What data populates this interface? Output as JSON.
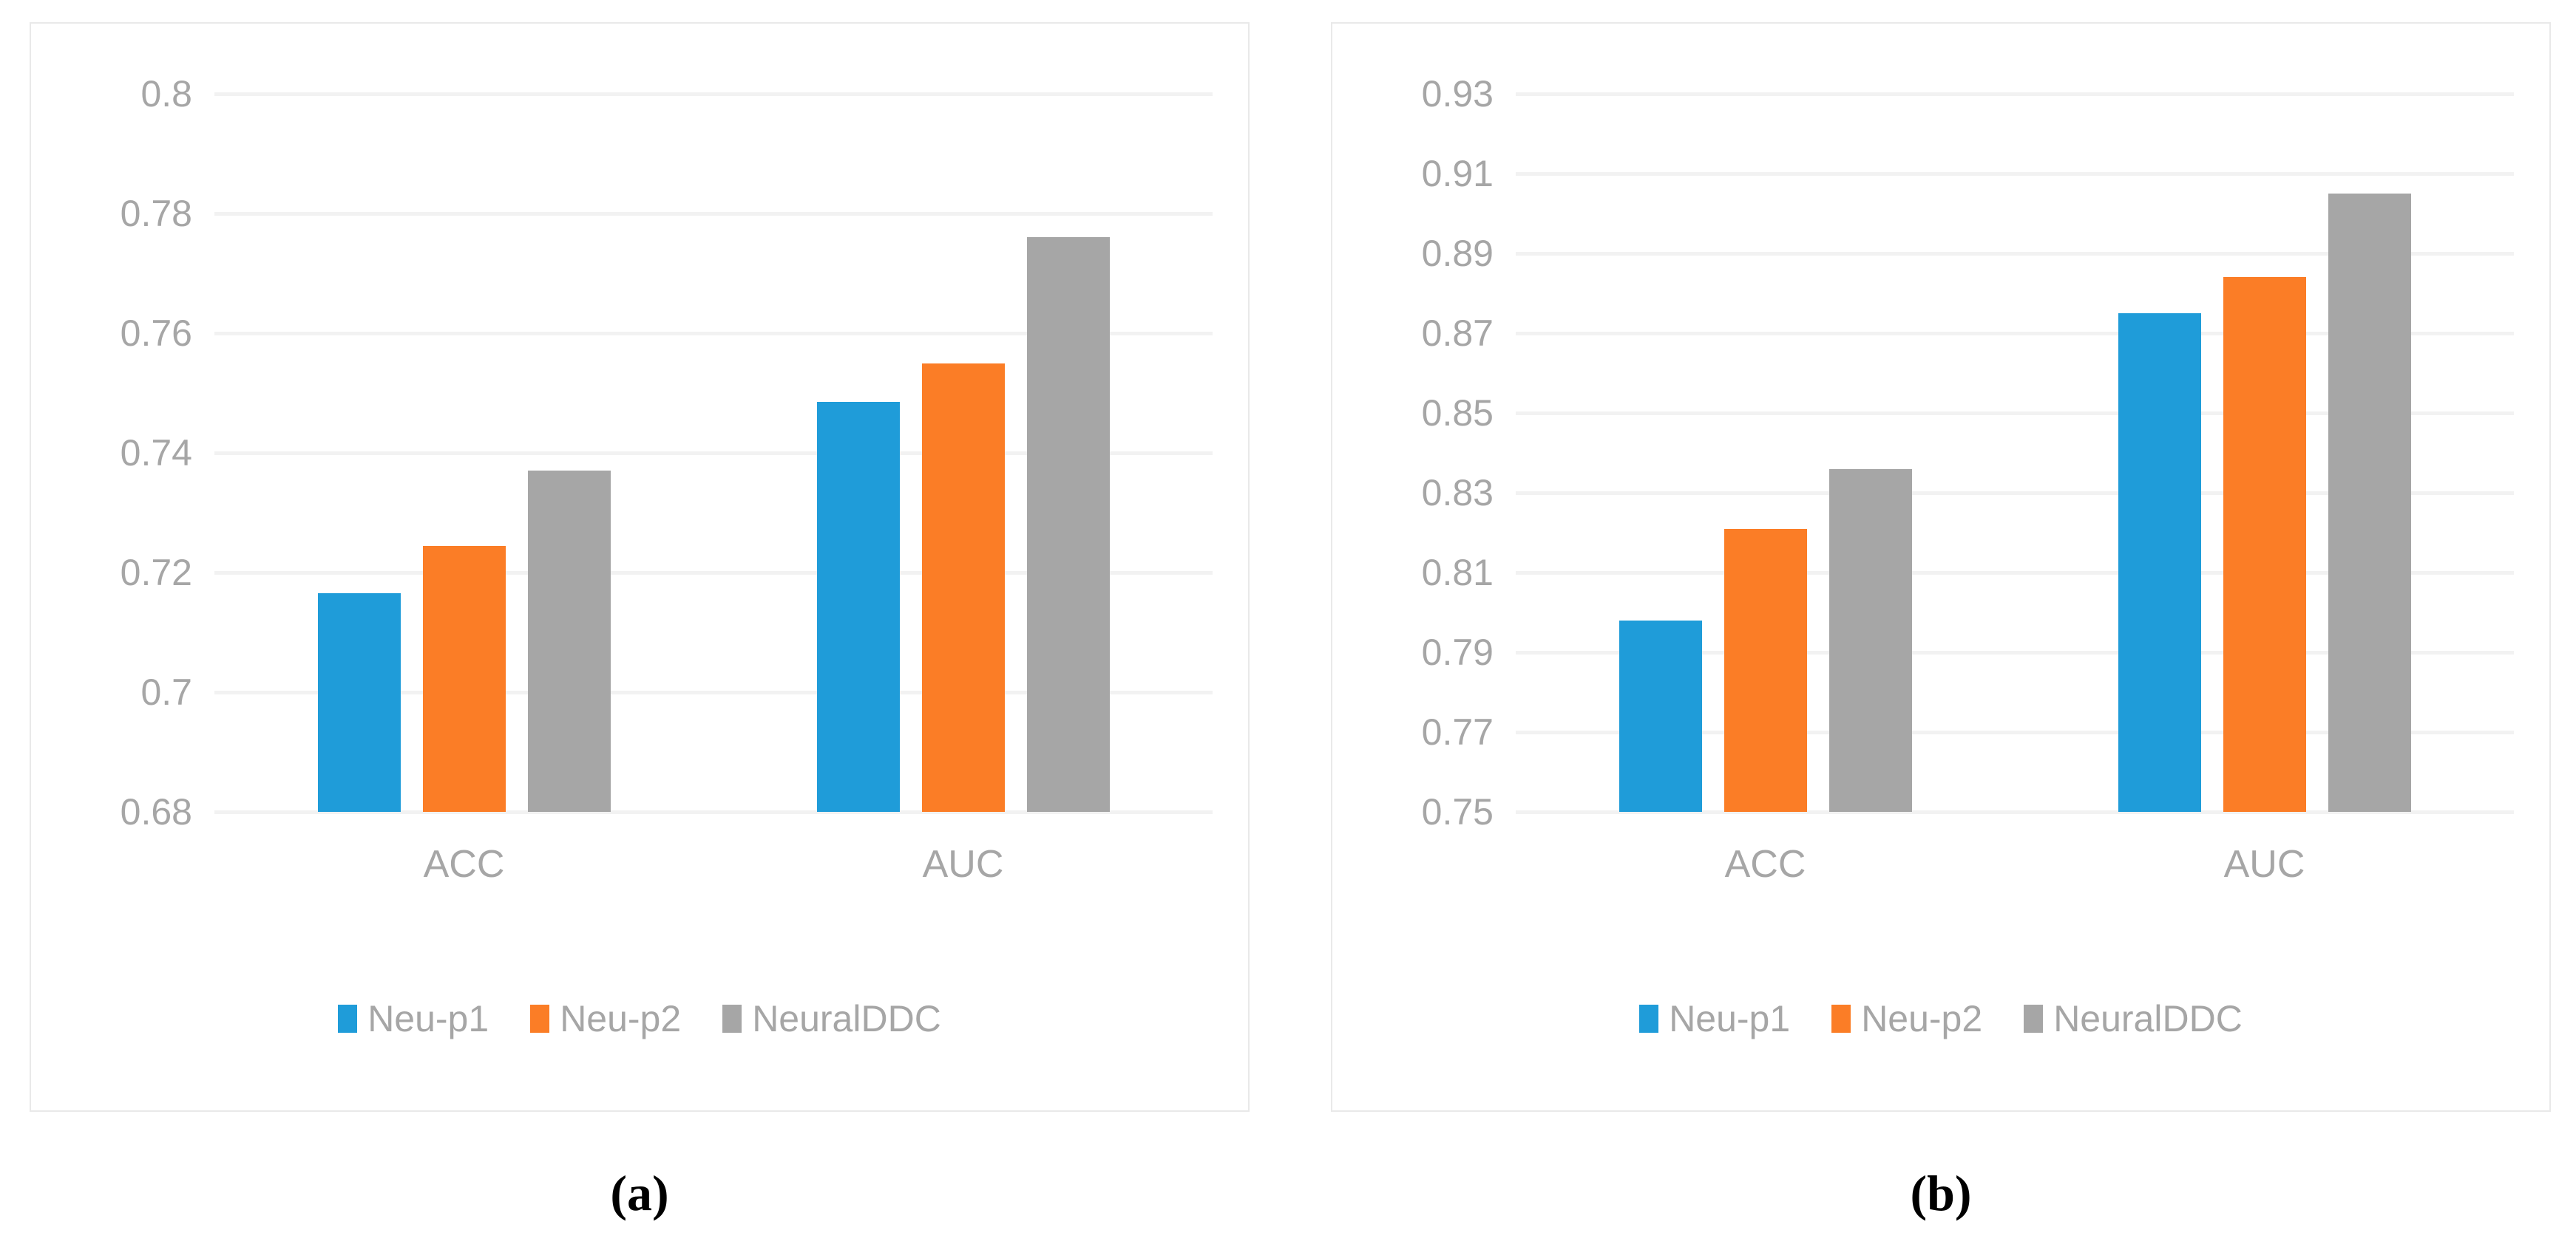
{
  "figure": {
    "caption_a": "(a)",
    "caption_b": "(b)",
    "background": "#ffffff",
    "panel_border_color": "#e9e9e9",
    "gridline_color": "#f2f2f2",
    "axis_text_color": "#a6a6a6",
    "caption_color": "#000000"
  },
  "chart_data": [
    {
      "type": "bar",
      "caption": "(a)",
      "title": "",
      "xlabel": "",
      "ylabel": "",
      "categories": [
        "ACC",
        "AUC"
      ],
      "series": [
        {
          "name": "Neu-p1",
          "color": "#1f9cd9",
          "values": [
            0.7165,
            0.7485
          ]
        },
        {
          "name": "Neu-p2",
          "color": "#fb7d26",
          "values": [
            0.7245,
            0.755
          ]
        },
        {
          "name": "NeuralDDC",
          "color": "#a6a6a6",
          "values": [
            0.737,
            0.776
          ]
        }
      ],
      "ylim": [
        0.68,
        0.8
      ],
      "ytick_step": 0.02,
      "ytick_labels": [
        "0.8",
        "0.78",
        "0.76",
        "0.74",
        "0.72",
        "0.7",
        "0.68"
      ],
      "grid": true,
      "legend_position": "bottom"
    },
    {
      "type": "bar",
      "caption": "(b)",
      "title": "",
      "xlabel": "",
      "ylabel": "",
      "categories": [
        "ACC",
        "AUC"
      ],
      "series": [
        {
          "name": "Neu-p1",
          "color": "#1f9cd9",
          "values": [
            0.798,
            0.875
          ]
        },
        {
          "name": "Neu-p2",
          "color": "#fb7d26",
          "values": [
            0.821,
            0.884
          ]
        },
        {
          "name": "NeuralDDC",
          "color": "#a6a6a6",
          "values": [
            0.836,
            0.905
          ]
        }
      ],
      "ylim": [
        0.75,
        0.93
      ],
      "ytick_step": 0.02,
      "ytick_labels": [
        "0.93",
        "0.91",
        "0.89",
        "0.87",
        "0.85",
        "0.83",
        "0.81",
        "0.79",
        "0.77",
        "0.75"
      ],
      "grid": true,
      "legend_position": "bottom"
    }
  ]
}
